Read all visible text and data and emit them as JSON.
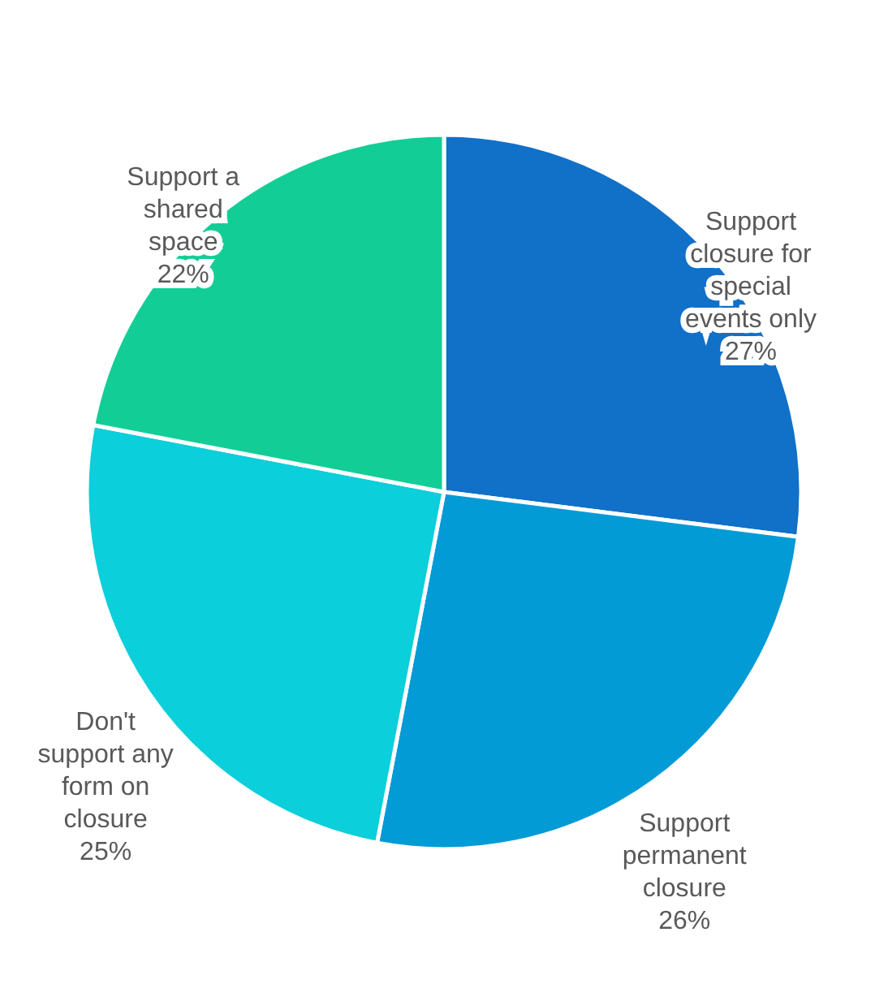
{
  "chart_data": {
    "type": "pie",
    "categories": [
      "Support closure for special events only",
      "Support permanent closure",
      "Don't support any form on closure",
      "Support a shared space"
    ],
    "values": [
      27,
      26,
      25,
      22
    ],
    "colors": [
      "#1170c8",
      "#039bd6",
      "#0bcfda",
      "#12ce96"
    ],
    "value_labels": [
      "27%",
      "26%",
      "25%",
      "22%"
    ],
    "legend": false
  }
}
